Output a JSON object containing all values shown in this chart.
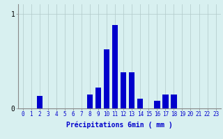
{
  "values": [
    0,
    0,
    0.13,
    0,
    0,
    0,
    0,
    0,
    0.15,
    0.22,
    0.62,
    0.88,
    0.38,
    0.38,
    0.1,
    0,
    0.08,
    0.15,
    0.15,
    0,
    0,
    0,
    0,
    0
  ],
  "categories": [
    "0",
    "1",
    "2",
    "3",
    "4",
    "5",
    "6",
    "7",
    "8",
    "9",
    "10",
    "11",
    "12",
    "13",
    "14",
    "15",
    "16",
    "17",
    "18",
    "19",
    "20",
    "21",
    "22",
    "23"
  ],
  "xlabel": "Précipitations 6min ( mm )",
  "ylim": [
    0,
    1.1
  ],
  "yticks": [
    0,
    1
  ],
  "bar_color": "#0000cc",
  "background_color": "#d8f0f0",
  "grid_color": "#b0c8c8",
  "axis_color": "#888888",
  "text_color": "#0000cc",
  "bar_width": 0.7
}
